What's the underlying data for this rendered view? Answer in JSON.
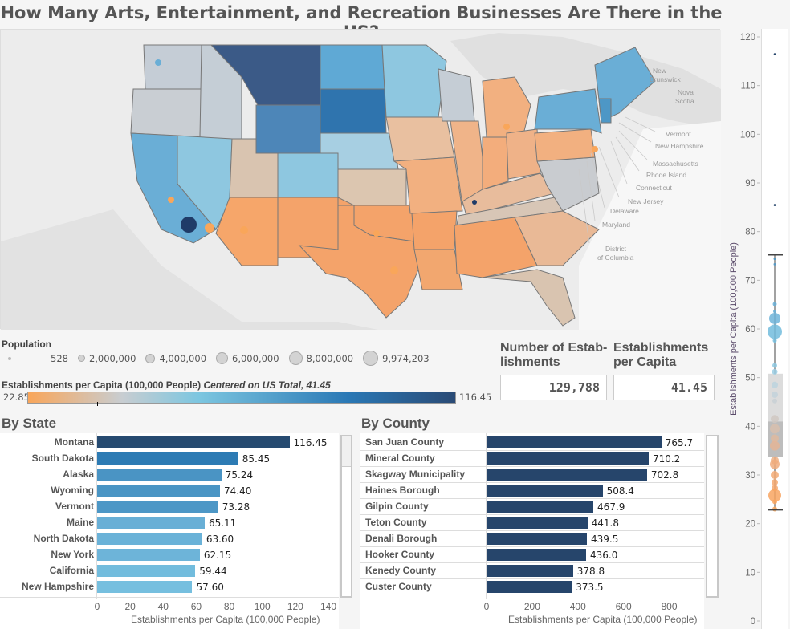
{
  "title": "How Many Arts, Entertainment, and Recreation Businesses Are There in the US?",
  "map": {
    "place_labels": [
      "New",
      "Brunswick",
      "Nova",
      "Scotia",
      "Vermont",
      "New Hampshire",
      "Massachusetts",
      "Rhode Island",
      "Connecticut",
      "New Jersey",
      "Delaware",
      "Maryland",
      "District",
      "of Columbia"
    ]
  },
  "population_legend": {
    "title": "Population",
    "items": [
      "528",
      "2,000,000",
      "4,000,000",
      "6,000,000",
      "8,000,000",
      "9,974,203"
    ]
  },
  "color_legend": {
    "title": "Establishments per Capita (100,000 People)",
    "subtitle": "Centered on US Total, 41.45",
    "min": "22.85",
    "max": "116.45",
    "colors": {
      "low": "#f9a65a",
      "mid": "#c8cdd1",
      "light_blue": "#7cc6e0",
      "blue": "#2a78b5",
      "high": "#2a4a75"
    }
  },
  "kpis": {
    "establishments_title": "Number of Estab- lishments",
    "establishments_value": "129,788",
    "per_capita_title": "Establishments per Capita",
    "per_capita_value": "41.45"
  },
  "chart_data": [
    {
      "type": "bar",
      "title": "By State",
      "categories": [
        "Montana",
        "South Dakota",
        "Alaska",
        "Wyoming",
        "Vermont",
        "Maine",
        "North Dakota",
        "New York",
        "California",
        "New Hampshire"
      ],
      "values": [
        116.45,
        85.45,
        75.24,
        74.4,
        73.28,
        65.11,
        63.6,
        62.15,
        59.44,
        57.6
      ],
      "value_labels": [
        "116.45",
        "85.45",
        "75.24",
        "74.40",
        "73.28",
        "65.11",
        "63.60",
        "62.15",
        "59.44",
        "57.60"
      ],
      "colors": [
        "#264a70",
        "#2d7bb4",
        "#4a94c4",
        "#4a95c4",
        "#4d97c6",
        "#68afd6",
        "#6ab2d8",
        "#6db4d9",
        "#72bcdd",
        "#76bfdf"
      ],
      "xlabel": "Establishments per Capita (100,000 People)",
      "xlim": [
        0,
        140
      ],
      "xticks": [
        "0",
        "20",
        "40",
        "60",
        "80",
        "100",
        "120",
        "140"
      ]
    },
    {
      "type": "bar",
      "title": "By County",
      "categories": [
        "San Juan County",
        "Mineral County",
        "Skagway Municipality",
        "Haines Borough",
        "Gilpin County",
        "Teton County",
        "Denali Borough",
        "Hooker County",
        "Kenedy County",
        "Custer County"
      ],
      "values": [
        765.7,
        710.2,
        702.8,
        508.4,
        467.9,
        441.8,
        439.5,
        436.0,
        378.8,
        373.5
      ],
      "value_labels": [
        "765.7",
        "710.2",
        "702.8",
        "508.4",
        "467.9",
        "441.8",
        "439.5",
        "436.0",
        "378.8",
        "373.5"
      ],
      "color": "#26456b",
      "xlabel": "Establishments per Capita (100,000 People)",
      "xlim": [
        0,
        960
      ],
      "xticks": [
        "0",
        "200",
        "400",
        "600",
        "800"
      ]
    },
    {
      "type": "box",
      "ylabel": "Establishments per Capita (100,000 People)",
      "ylim": [
        0,
        120
      ],
      "yticks": [
        "0",
        "10",
        "20",
        "30",
        "40",
        "50",
        "60",
        "70",
        "80",
        "90",
        "100",
        "110",
        "120"
      ],
      "whisker_low": 22.85,
      "q1": 33.7,
      "median": 41.0,
      "q3": 50.8,
      "whisker_high": 75.24,
      "outliers": [
        85.45,
        116.45
      ],
      "points": [
        {
          "v": 74.4,
          "r": 1.5,
          "c": "#4a95c4"
        },
        {
          "v": 73.3,
          "r": 1.5,
          "c": "#4d97c6"
        },
        {
          "v": 65.1,
          "r": 2.5,
          "c": "#68afd6"
        },
        {
          "v": 63.6,
          "r": 2,
          "c": "#6ab2d8"
        },
        {
          "v": 62.15,
          "r": 7,
          "c": "#6db4d9"
        },
        {
          "v": 59.44,
          "r": 9,
          "c": "#72bcdd"
        },
        {
          "v": 57.6,
          "r": 2.5,
          "c": "#76bfdf"
        },
        {
          "v": 52.5,
          "r": 3,
          "c": "#8ec9e2"
        },
        {
          "v": 51.2,
          "r": 3.5,
          "c": "#9acde3"
        },
        {
          "v": 48.5,
          "r": 4,
          "c": "#bcd3de"
        },
        {
          "v": 46.5,
          "r": 4,
          "c": "#c3d2da"
        },
        {
          "v": 45.2,
          "r": 3,
          "c": "#c8d0d5"
        },
        {
          "v": 41.5,
          "r": 5,
          "c": "#d0c8c2"
        },
        {
          "v": 39.5,
          "r": 6,
          "c": "#d8bfae"
        },
        {
          "v": 37.5,
          "r": 5,
          "c": "#dfba9f"
        },
        {
          "v": 36.0,
          "r": 6,
          "c": "#e4b596"
        },
        {
          "v": 33.0,
          "r": 5,
          "c": "#eeaf82"
        },
        {
          "v": 32.2,
          "r": 6,
          "c": "#f0ac7c"
        },
        {
          "v": 30.0,
          "r": 5,
          "c": "#f3aa74"
        },
        {
          "v": 28.5,
          "r": 4,
          "c": "#f5a86e"
        },
        {
          "v": 27.3,
          "r": 4,
          "c": "#f6a76c"
        },
        {
          "v": 25.8,
          "r": 8,
          "c": "#f8a560"
        },
        {
          "v": 24.5,
          "r": 3,
          "c": "#f9a55d"
        },
        {
          "v": 23.0,
          "r": 3,
          "c": "#f9a65a"
        }
      ]
    }
  ]
}
